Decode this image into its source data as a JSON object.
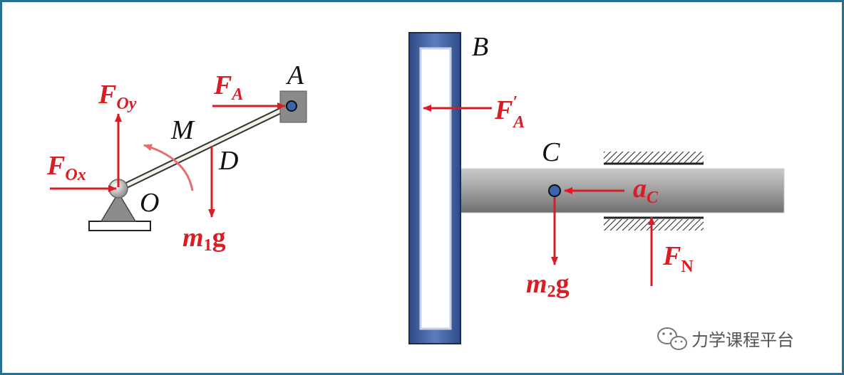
{
  "labels": {
    "point_A": "A",
    "point_B": "B",
    "point_C": "C",
    "point_D": "D",
    "point_M": "M",
    "point_O": "O"
  },
  "forces": {
    "F_Oy_main": "F",
    "F_Oy_sub": "Oy",
    "F_Ox_main": "F",
    "F_Ox_sub": "Ox",
    "F_A_main": "F",
    "F_A_sub": "A",
    "F_A_prime_main": "F",
    "F_A_prime_mark": "′",
    "F_A_prime_sub": "A",
    "m1g_m": "m",
    "m1g_sub": "1",
    "m1g_g": "g",
    "m2g_m": "m",
    "m2g_sub": "2",
    "m2g_g": "g",
    "a_C_main": "a",
    "a_C_sub": "C",
    "F_N_main": "F",
    "F_N_sub": "N"
  },
  "watermark": {
    "text": "力学课程平台",
    "icon": "wechat-icon"
  },
  "colors": {
    "force": "#d81e24",
    "frame": "#2a6f8f",
    "slotted_bar": "#3f5f98",
    "rod": "#9a9a9a"
  }
}
